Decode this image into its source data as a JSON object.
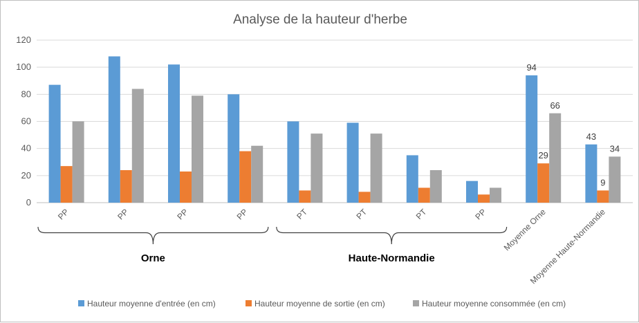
{
  "chart_data": {
    "type": "bar",
    "title": "Analyse de la hauteur d'herbe",
    "xlabel": "",
    "ylabel": "",
    "ylim": [
      0,
      120
    ],
    "yticks": [
      0,
      20,
      40,
      60,
      80,
      100,
      120
    ],
    "grid": true,
    "legend_position": "bottom",
    "categories": [
      "PP",
      "PP",
      "PP",
      "PP",
      "PT",
      "PT",
      "PT",
      "PP",
      "Moyenne Orne",
      "Moyenne Haute-Normandie"
    ],
    "groups": [
      {
        "label": "Orne",
        "from": 0,
        "to": 3
      },
      {
        "label": "Haute-Normandie",
        "from": 4,
        "to": 7
      }
    ],
    "series": [
      {
        "name": "Hauteur moyenne d'entrée (en cm)",
        "color": "#5b9bd5",
        "values": [
          87,
          108,
          102,
          80,
          60,
          59,
          35,
          16,
          94,
          43
        ]
      },
      {
        "name": "Hauteur moyenne de sortie (en cm)",
        "color": "#ed7d31",
        "values": [
          27,
          24,
          23,
          38,
          9,
          8,
          11,
          6,
          29,
          9
        ]
      },
      {
        "name": "Hauteur moyenne consommée (en cm)",
        "color": "#a5a5a5",
        "values": [
          60,
          84,
          79,
          42,
          51,
          51,
          24,
          11,
          66,
          34
        ]
      }
    ],
    "data_labels": [
      {
        "series": 0,
        "category": 8,
        "text": "94"
      },
      {
        "series": 1,
        "category": 8,
        "text": "29"
      },
      {
        "series": 2,
        "category": 8,
        "text": "66"
      },
      {
        "series": 0,
        "category": 9,
        "text": "43"
      },
      {
        "series": 1,
        "category": 9,
        "text": "9"
      },
      {
        "series": 2,
        "category": 9,
        "text": "34"
      }
    ]
  }
}
